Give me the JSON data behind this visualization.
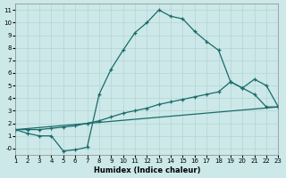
{
  "xlabel": "Humidex (Indice chaleur)",
  "ylabel": "",
  "background_color": "#cce8e8",
  "grid_color": "#b5d5d5",
  "line_color": "#1a6b6b",
  "xlim": [
    1,
    23
  ],
  "ylim": [
    -0.5,
    11.5
  ],
  "xticks": [
    1,
    2,
    3,
    4,
    5,
    6,
    7,
    8,
    9,
    10,
    11,
    12,
    13,
    14,
    15,
    16,
    17,
    18,
    19,
    20,
    21,
    22,
    23
  ],
  "yticks": [
    0,
    1,
    2,
    3,
    4,
    5,
    6,
    7,
    8,
    9,
    10,
    11
  ],
  "ytick_labels": [
    "-0",
    "1",
    "2",
    "3",
    "4",
    "5",
    "6",
    "7",
    "8",
    "9",
    "10",
    "11"
  ],
  "line1_x": [
    1,
    2,
    3,
    4,
    5,
    6,
    7,
    8,
    9,
    10,
    11,
    12,
    13,
    14,
    15,
    16,
    17,
    18,
    19,
    20,
    21,
    22,
    23
  ],
  "line1_y": [
    1.5,
    1.2,
    1.0,
    1.0,
    -0.2,
    -0.1,
    0.1,
    4.3,
    6.3,
    7.8,
    9.2,
    10.0,
    11.0,
    10.5,
    10.3,
    9.3,
    8.5,
    7.8,
    5.3,
    4.8,
    4.3,
    3.3,
    3.3
  ],
  "line2_x": [
    1,
    2,
    3,
    4,
    5,
    6,
    7,
    8,
    9,
    10,
    11,
    12,
    13,
    14,
    15,
    16,
    17,
    18,
    19,
    20,
    21,
    22,
    23
  ],
  "line2_y": [
    1.5,
    1.5,
    1.5,
    1.6,
    1.7,
    1.8,
    2.0,
    2.2,
    2.5,
    2.8,
    3.0,
    3.2,
    3.5,
    3.7,
    3.9,
    4.1,
    4.3,
    4.5,
    5.3,
    4.8,
    5.5,
    5.0,
    3.3
  ],
  "line3_x": [
    1,
    23
  ],
  "line3_y": [
    1.5,
    3.3
  ]
}
